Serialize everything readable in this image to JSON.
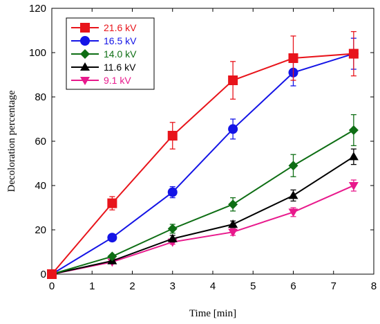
{
  "chart_data": {
    "type": "line",
    "xlabel": "Time [min]",
    "ylabel": "Decoloration percentage",
    "xlim": [
      0,
      8
    ],
    "ylim": [
      0,
      120
    ],
    "xticks": [
      "0",
      "1",
      "2",
      "3",
      "4",
      "5",
      "6",
      "7",
      "8"
    ],
    "yticks": [
      "0",
      "20",
      "40",
      "60",
      "80",
      "100",
      "120"
    ],
    "grid": false,
    "legend_position": "top-left",
    "x": [
      0,
      1.5,
      3,
      4.5,
      6,
      7.5
    ],
    "series": [
      {
        "name": "21.6 kV",
        "color": "#e8141b",
        "marker": "square",
        "values": [
          0,
          32,
          62.5,
          87.5,
          97.5,
          99.5
        ],
        "errors": [
          0,
          3,
          6,
          8.5,
          10,
          10
        ]
      },
      {
        "name": "16.5 kV",
        "color": "#1414e6",
        "marker": "circle",
        "values": [
          0,
          16.5,
          37,
          65.5,
          91,
          99.5
        ],
        "errors": [
          0,
          0,
          2.5,
          4.5,
          6,
          7
        ]
      },
      {
        "name": "14.0 kV",
        "color": "#0e6e14",
        "marker": "diamond",
        "values": [
          0,
          8,
          20.5,
          31.5,
          49,
          65
        ],
        "errors": [
          0,
          0,
          2,
          3,
          5,
          7
        ]
      },
      {
        "name": "11.6 kV",
        "color": "#000000",
        "marker": "triangle-up",
        "values": [
          0,
          6,
          16,
          22.5,
          35.5,
          53
        ],
        "errors": [
          0,
          0,
          1.5,
          1.5,
          2.5,
          3.5
        ]
      },
      {
        "name": "9.1 kV",
        "color": "#e8198c",
        "marker": "triangle-down",
        "values": [
          0,
          5.5,
          14.5,
          19,
          28,
          40
        ],
        "errors": [
          0,
          0,
          1,
          1.5,
          2,
          2.5
        ]
      }
    ]
  }
}
